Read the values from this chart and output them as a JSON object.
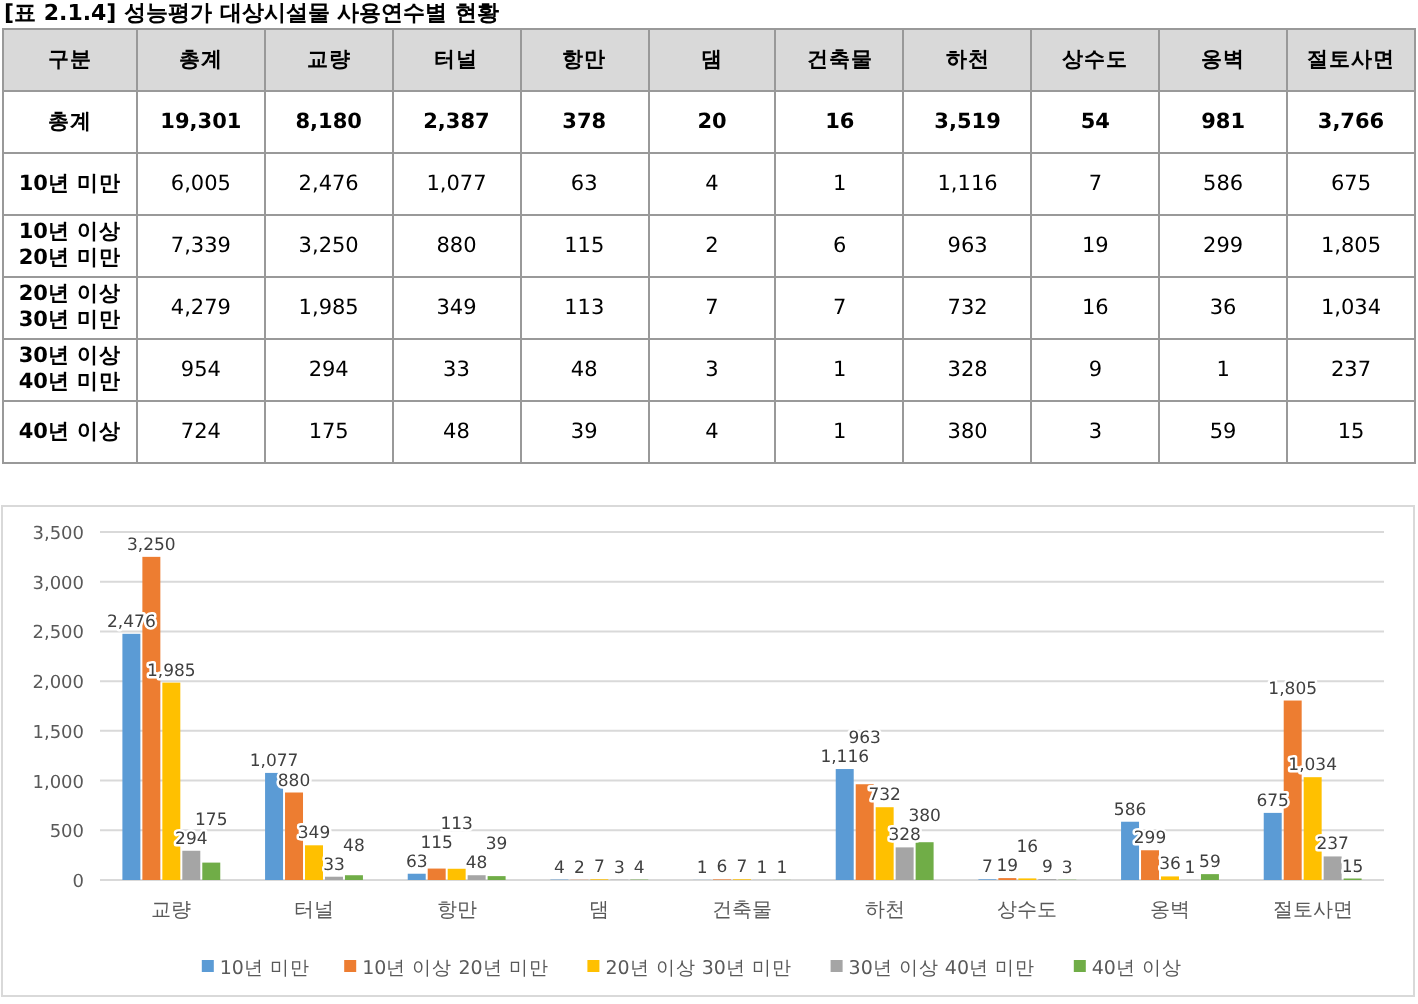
{
  "chart_data": [
    {
      "type": "heatmap",
      "title": "[표 2.1.4] 성능평가 대상시설물 사용연수별 현황",
      "ylabel": "구분",
      "categories": [
        "총계",
        "교량",
        "터널",
        "항만",
        "댐",
        "건축물",
        "하천",
        "상수도",
        "옹벽",
        "절토사면"
      ],
      "y_categories": [
        "총계",
        "10년 미만",
        "10년 이상 20년 미만",
        "20년 이상 30년 미만",
        "30년 이상 40년 미만",
        "40년 이상"
      ],
      "cells": [
        [
          19301,
          8180,
          2387,
          378,
          20,
          16,
          3519,
          54,
          981,
          3766
        ],
        [
          6005,
          2476,
          1077,
          63,
          4,
          1,
          1116,
          7,
          586,
          675
        ],
        [
          7339,
          3250,
          880,
          115,
          2,
          6,
          963,
          19,
          299,
          1805
        ],
        [
          4279,
          1985,
          349,
          113,
          7,
          7,
          732,
          16,
          36,
          1034
        ],
        [
          954,
          294,
          33,
          48,
          3,
          1,
          328,
          9,
          1,
          237
        ],
        [
          724,
          175,
          48,
          39,
          4,
          1,
          380,
          3,
          59,
          15
        ]
      ],
      "cell_labels": [
        [
          "19,301",
          "8,180",
          "2,387",
          "378",
          "20",
          "16",
          "3,519",
          "54",
          "981",
          "3,766"
        ],
        [
          "6,005",
          "2,476",
          "1,077",
          "63",
          "4",
          "1",
          "1,116",
          "7",
          "586",
          "675"
        ],
        [
          "7,339",
          "3,250",
          "880",
          "115",
          "2",
          "6",
          "963",
          "19",
          "299",
          "1,805"
        ],
        [
          "4,279",
          "1,985",
          "349",
          "113",
          "7",
          "7",
          "732",
          "16",
          "36",
          "1,034"
        ],
        [
          "954",
          "294",
          "33",
          "48",
          "3",
          "1",
          "328",
          "9",
          "1",
          "237"
        ],
        [
          "724",
          "175",
          "48",
          "39",
          "4",
          "1",
          "380",
          "3",
          "59",
          "15"
        ]
      ]
    },
    {
      "type": "bar",
      "categories": [
        "교량",
        "터널",
        "항만",
        "댐",
        "건축물",
        "하천",
        "상수도",
        "옹벽",
        "절토사면"
      ],
      "series": [
        {
          "name": "10년 미만",
          "color": "#5b9bd5",
          "values": [
            2476,
            1077,
            63,
            4,
            1,
            1116,
            7,
            586,
            675
          ],
          "value_labels": [
            "2,476",
            "1,077",
            "63",
            "4",
            "1",
            "1,116",
            "7",
            "586",
            "675"
          ]
        },
        {
          "name": "10년 이상 20년 미만",
          "color": "#ed7d31",
          "values": [
            3250,
            880,
            115,
            2,
            6,
            963,
            19,
            299,
            1805
          ],
          "value_labels": [
            "3,250",
            "880",
            "115",
            "2",
            "6",
            "963",
            "19",
            "299",
            "1,805"
          ]
        },
        {
          "name": "20년 이상 30년 미만",
          "color": "#ffc000",
          "values": [
            1985,
            349,
            113,
            7,
            7,
            732,
            16,
            36,
            1034
          ],
          "value_labels": [
            "1,985",
            "349",
            "113",
            "7",
            "7",
            "732",
            "16",
            "36",
            "1,034"
          ]
        },
        {
          "name": "30년 이상 40년 미만",
          "color": "#a5a5a5",
          "values": [
            294,
            33,
            48,
            3,
            1,
            328,
            9,
            1,
            237
          ],
          "value_labels": [
            "294",
            "33",
            "48",
            "3",
            "1",
            "328",
            "9",
            "1",
            "237"
          ]
        },
        {
          "name": "40년 이상",
          "color": "#70ad47",
          "values": [
            175,
            48,
            39,
            4,
            1,
            380,
            3,
            59,
            15
          ],
          "value_labels": [
            "175",
            "48",
            "39",
            "4",
            "1",
            "380",
            "3",
            "59",
            "15"
          ]
        }
      ],
      "ylim": [
        0,
        3500
      ],
      "yticks": [
        {
          "value": 0,
          "label": "0"
        },
        {
          "value": 500,
          "label": "500"
        },
        {
          "value": 1000,
          "label": "1,000"
        },
        {
          "value": 1500,
          "label": "1,500"
        },
        {
          "value": 2000,
          "label": "2,000"
        },
        {
          "value": 2500,
          "label": "2,500"
        },
        {
          "value": 3000,
          "label": "3,000"
        },
        {
          "value": 3500,
          "label": "3,500"
        }
      ],
      "grid": "y",
      "legend": "bottom"
    }
  ]
}
